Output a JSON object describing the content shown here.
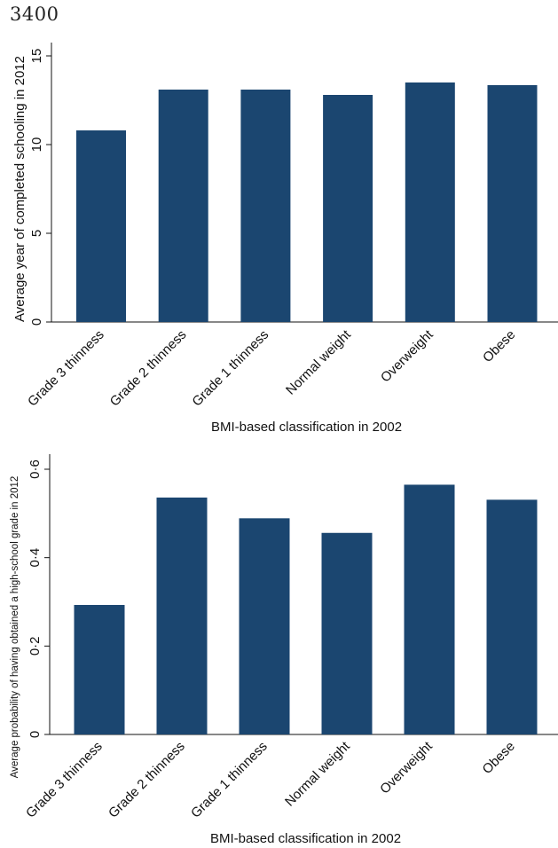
{
  "page_number": "3400",
  "bar_color": "#1b4670",
  "chart_data": [
    {
      "type": "bar",
      "categories": [
        "Grade 3 thinness",
        "Grade 2 thinness",
        "Grade 1 thinness",
        "Normal weight",
        "Overweight",
        "Obese"
      ],
      "values": [
        10.8,
        13.1,
        13.1,
        12.8,
        13.5,
        13.35
      ],
      "xlabel": "BMI-based classification in 2002",
      "ylabel": "Average year of completed schooling in 2012",
      "yticks": [
        "0",
        "5",
        "10",
        "15"
      ],
      "ylim": [
        0,
        15
      ],
      "grid": false
    },
    {
      "type": "bar",
      "categories": [
        "Grade 3 thinness",
        "Grade 2 thinness",
        "Grade 1 thinness",
        "Normal weight",
        "Overweight",
        "Obese"
      ],
      "values": [
        0.293,
        0.536,
        0.489,
        0.456,
        0.565,
        0.531
      ],
      "xlabel": "BMI-based classification in 2002",
      "ylabel": "Average probability of having obtained a high-school grade in 2012",
      "yticks": [
        "0",
        "0·2",
        "0·4",
        "0·6"
      ],
      "ylim": [
        0,
        0.6
      ],
      "grid": false
    }
  ]
}
